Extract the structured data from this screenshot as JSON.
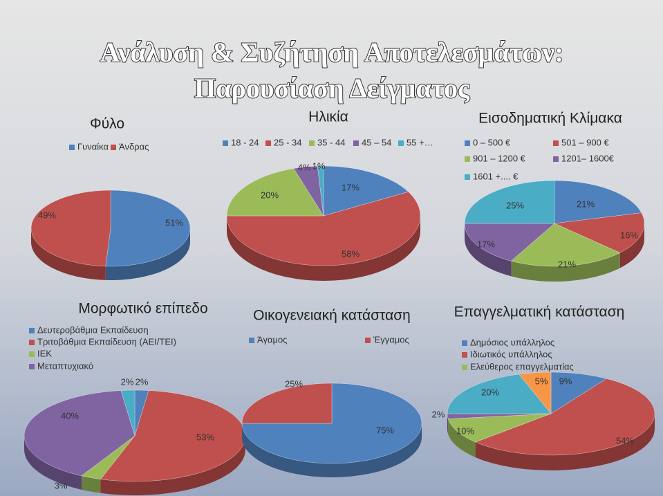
{
  "title": "Ανάλυση & Συζήτηση Αποτελεσμάτων:",
  "subtitle": "Παρουσίαση Δείγματος",
  "chart_data": [
    {
      "type": "pie",
      "title": "Φύλο",
      "categories": [
        "Γυναίκα",
        "Άνδρας"
      ],
      "values": [
        51,
        49
      ],
      "value_labels": [
        "51%",
        "49%"
      ],
      "colors": [
        "#4f81bd",
        "#c0504d"
      ]
    },
    {
      "type": "pie",
      "title": "Ηλικία",
      "categories": [
        "18 - 24",
        "25 - 34",
        "35 - 44",
        "45 – 54",
        "55 +…"
      ],
      "values": [
        17,
        58,
        20,
        4,
        1
      ],
      "value_labels": [
        "17%",
        "58%",
        "20%",
        "4%",
        "1%"
      ],
      "colors": [
        "#4f81bd",
        "#c0504d",
        "#9bbb59",
        "#8064a2",
        "#4bacc6"
      ]
    },
    {
      "type": "pie",
      "title": "Εισοδηματική Κλίμακα",
      "categories": [
        "0 – 500 €",
        "501 – 900 €",
        "901 – 1200 €",
        "1201– 1600€",
        "1601 +.... €"
      ],
      "values": [
        21,
        16,
        21,
        17,
        25
      ],
      "value_labels": [
        "21%",
        "16%",
        "21%",
        "17%",
        "25%"
      ],
      "colors": [
        "#4f81bd",
        "#c0504d",
        "#9bbb59",
        "#8064a2",
        "#4bacc6"
      ]
    },
    {
      "type": "pie",
      "title": "Μορφωτικό επίπεδο",
      "categories": [
        "Δευτεροβάθμια Εκπαίδευση",
        "Τριτοβάθμια Εκπαίδευση (ΑΕΙ/ΤΕΙ)",
        "ΙΕΚ",
        "Μεταπτυχιακό",
        null
      ],
      "values": [
        2,
        53,
        3,
        40,
        2
      ],
      "value_labels": [
        "2%",
        "53%",
        "3%",
        "40%",
        "2%"
      ],
      "colors": [
        "#4f81bd",
        "#c0504d",
        "#9bbb59",
        "#8064a2",
        "#4bacc6"
      ]
    },
    {
      "type": "pie",
      "title": "Οικογενειακή κατάσταση",
      "categories": [
        "Άγαμος",
        "Έγγαμος"
      ],
      "values": [
        75,
        25
      ],
      "value_labels": [
        "75%",
        "25%"
      ],
      "colors": [
        "#4f81bd",
        "#c0504d"
      ]
    },
    {
      "type": "pie",
      "title": "Επαγγελματική κατάσταση",
      "categories": [
        "Δημόσιος υπάλληλος",
        "Ιδιωτικός υπάλληλος",
        "Ελεύθερος επαγγελματίας",
        null,
        null,
        null
      ],
      "values": [
        9,
        54,
        10,
        2,
        20,
        5
      ],
      "value_labels": [
        "9%",
        "54%",
        "10%",
        "2%",
        "20%",
        "5%"
      ],
      "colors": [
        "#4f81bd",
        "#c0504d",
        "#9bbb59",
        "#8064a2",
        "#4bacc6",
        "#f79646"
      ]
    }
  ]
}
